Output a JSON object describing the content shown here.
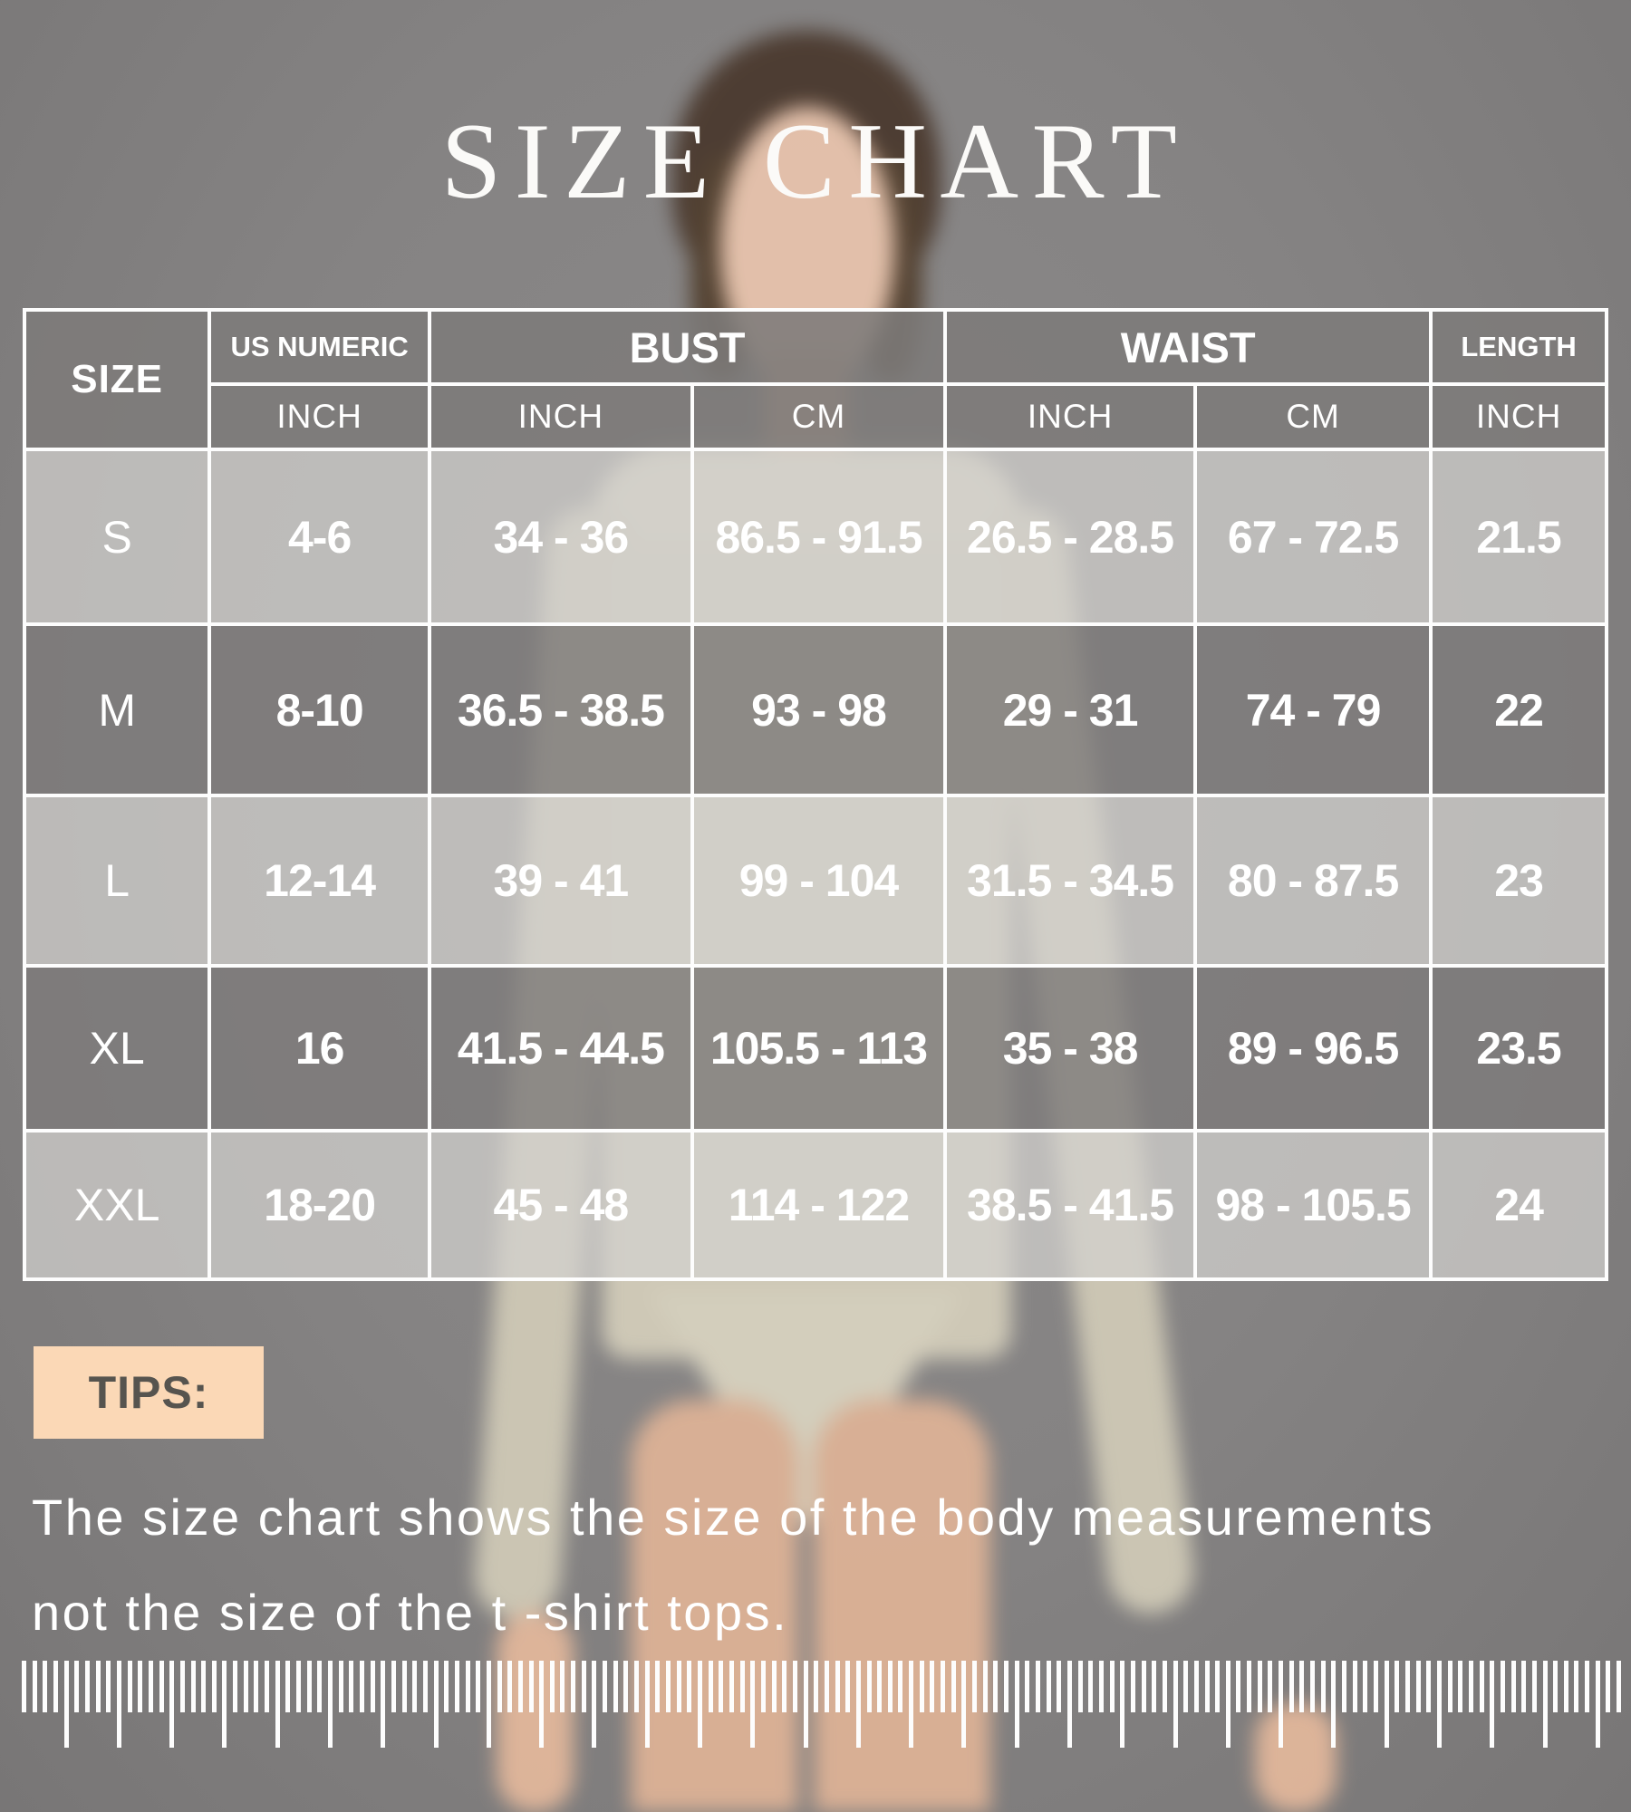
{
  "page": {
    "title": "SIZE CHART"
  },
  "table": {
    "header_groups": [
      "SIZE",
      "US NUMERIC",
      "BUST",
      "WAIST",
      "LENGTH"
    ],
    "sub_headers": [
      "INCH",
      "INCH",
      "CM",
      "INCH",
      "CM",
      "INCH"
    ]
  },
  "chart_data": {
    "type": "table",
    "title": "SIZE CHART",
    "columns": [
      "SIZE",
      "US NUMERIC (INCH)",
      "BUST (INCH)",
      "BUST (CM)",
      "WAIST (INCH)",
      "WAIST (CM)",
      "LENGTH (INCH)"
    ],
    "rows": [
      [
        "S",
        "4-6",
        "34 - 36",
        "86.5 - 91.5",
        "26.5 - 28.5",
        "67 - 72.5",
        "21.5"
      ],
      [
        "M",
        "8-10",
        "36.5 - 38.5",
        "93 - 98",
        "29 - 31",
        "74 - 79",
        "22"
      ],
      [
        "L",
        "12-14",
        "39 - 41",
        "99 - 104",
        "31.5 - 34.5",
        "80 - 87.5",
        "23"
      ],
      [
        "XL",
        "16",
        "41.5 - 44.5",
        "105.5 - 113",
        "35 - 38",
        "89 - 96.5",
        "23.5"
      ],
      [
        "XXL",
        "18-20",
        "45 - 48",
        "114 - 122",
        "38.5 - 41.5",
        "98 - 105.5",
        "24"
      ]
    ]
  },
  "tips": {
    "label": "TIPS:",
    "line1": "The size chart shows the size of the body measurements",
    "line2": "not the size of the  t -shirt tops."
  },
  "colors": {
    "background": "#858383",
    "table_border": "#fdfdfd",
    "row_light": "#d3d1cf",
    "row_dark": "#7d7b7a",
    "tips_badge_bg": "#fbd8b6",
    "tips_badge_text": "#56544f",
    "text": "#ffffff"
  }
}
